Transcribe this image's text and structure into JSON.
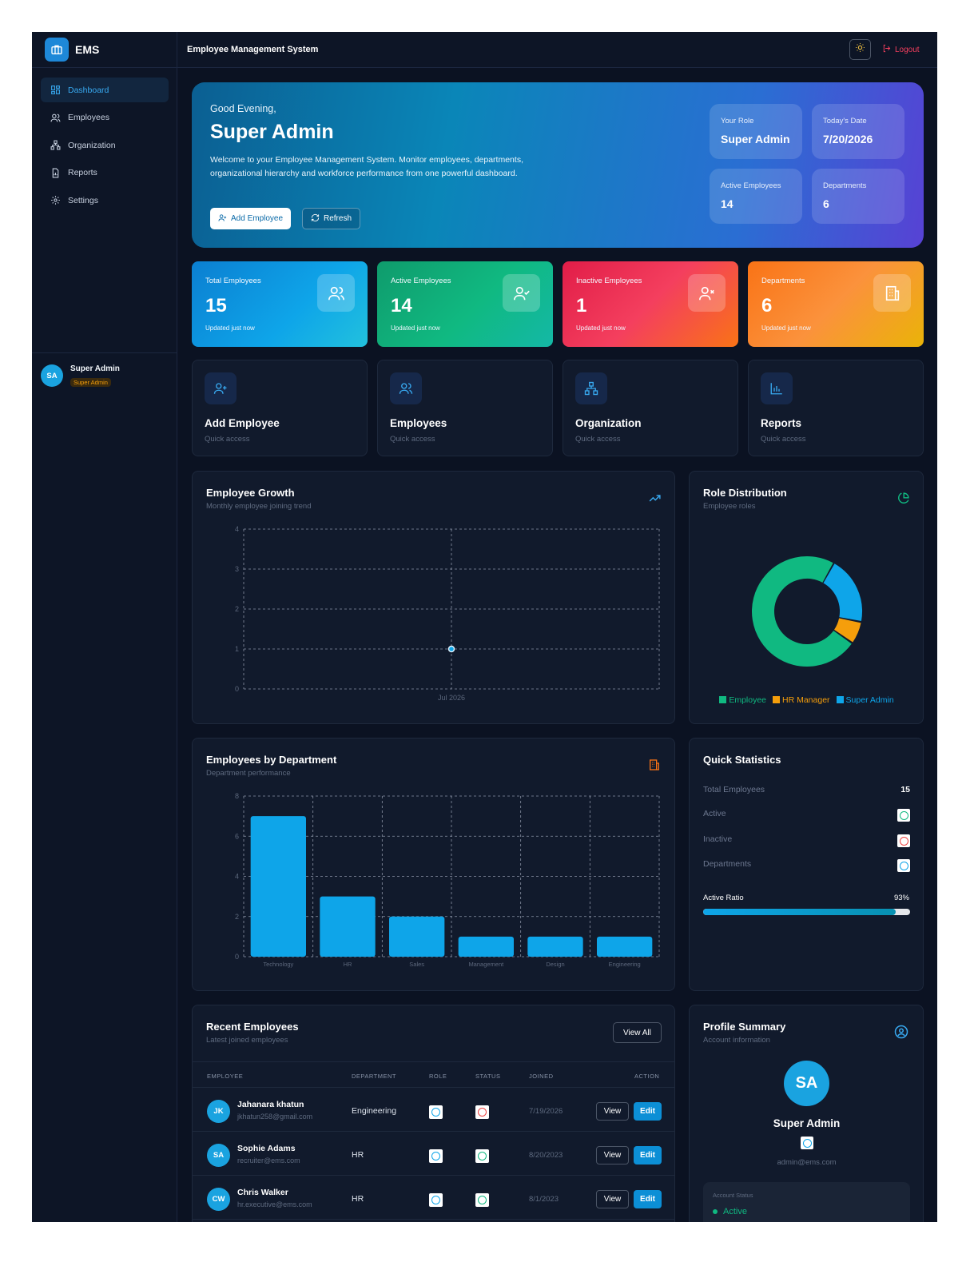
{
  "brand": {
    "name": "EMS",
    "icon": "briefcase-icon"
  },
  "sidebar": {
    "items": [
      {
        "label": "Dashboard",
        "icon": "dashboard-icon",
        "active": true
      },
      {
        "label": "Employees",
        "icon": "users-icon"
      },
      {
        "label": "Organization",
        "icon": "org-chart-icon"
      },
      {
        "label": "Reports",
        "icon": "file-chart-icon"
      },
      {
        "label": "Settings",
        "icon": "gear-icon"
      }
    ],
    "user": {
      "initials": "SA",
      "name": "Super Admin",
      "role": "Super Admin"
    }
  },
  "header": {
    "title": "Employee Management System",
    "logout_label": "Logout",
    "theme_icon": "sun-icon"
  },
  "hero": {
    "greeting": "Good Evening,",
    "name": "Super Admin",
    "description": "Welcome to your Employee Management System. Monitor employees, departments, organizational hierarchy and workforce performance from one powerful dashboard.",
    "add_employee_label": "Add Employee",
    "refresh_label": "Refresh",
    "stats": [
      {
        "label": "Your Role",
        "value": "Super Admin"
      },
      {
        "label": "Today's Date",
        "value": "7/20/2026"
      },
      {
        "label": "Active Employees",
        "value": "14"
      },
      {
        "label": "Departments",
        "value": "6"
      }
    ]
  },
  "stat_cards": [
    {
      "label": "Total Employees",
      "value": "15",
      "sub": "Updated just now",
      "icon": "users-icon",
      "color": "#0ea5e9"
    },
    {
      "label": "Active Employees",
      "value": "14",
      "sub": "Updated just now",
      "icon": "user-check-icon",
      "color": "#10b981"
    },
    {
      "label": "Inactive Employees",
      "value": "1",
      "sub": "Updated just now",
      "icon": "user-x-icon",
      "color": "#f43f5e"
    },
    {
      "label": "Departments",
      "value": "6",
      "sub": "Updated just now",
      "icon": "building-icon",
      "color": "#f97316"
    }
  ],
  "quick_access": [
    {
      "title": "Add Employee",
      "sub": "Quick access",
      "icon": "user-plus-icon"
    },
    {
      "title": "Employees",
      "sub": "Quick access",
      "icon": "users-icon"
    },
    {
      "title": "Organization",
      "sub": "Quick access",
      "icon": "org-chart-icon"
    },
    {
      "title": "Reports",
      "sub": "Quick access",
      "icon": "bar-chart-icon"
    }
  ],
  "growth_panel": {
    "title": "Employee Growth",
    "subtitle": "Monthly employee joining trend",
    "icon": "trending-up-icon"
  },
  "roles_panel": {
    "title": "Role Distribution",
    "subtitle": "Employee roles",
    "icon": "pie-chart-icon"
  },
  "dept_panel": {
    "title": "Employees by Department",
    "subtitle": "Department performance",
    "icon": "building-icon"
  },
  "chart_data": [
    {
      "type": "line",
      "x": [
        "Jul 2026"
      ],
      "series": [
        {
          "values": [
            1
          ]
        }
      ],
      "ylim": [
        0,
        4
      ],
      "yticks": [
        0,
        1,
        2,
        3,
        4
      ],
      "grid": true
    },
    {
      "type": "pie",
      "donut": true,
      "categories": [
        "Employee",
        "HR Manager",
        "Super Admin"
      ],
      "values": [
        11,
        1,
        3
      ],
      "colors": [
        "#10b981",
        "#f59e0b",
        "#0ea5e9"
      ],
      "legend": "bottom"
    },
    {
      "type": "bar",
      "categories": [
        "Technology",
        "HR",
        "Sales",
        "Management",
        "Design",
        "Engineering"
      ],
      "values": [
        7,
        3,
        2,
        1,
        1,
        1
      ],
      "ylim": [
        0,
        8
      ],
      "yticks": [
        0,
        2,
        4,
        6,
        8
      ],
      "grid": true,
      "color": "#0ea5e9"
    }
  ],
  "quick_stats": {
    "title": "Quick Statistics",
    "total_label": "Total Employees",
    "total_value": "15",
    "active_label": "Active",
    "inactive_label": "Inactive",
    "departments_label": "Departments",
    "ratio_label": "Active Ratio",
    "ratio_value": "93%",
    "ratio_fraction": 0.93
  },
  "recent": {
    "title": "Recent Employees",
    "subtitle": "Latest joined employees",
    "view_all_label": "View All",
    "columns": [
      "EMPLOYEE",
      "DEPARTMENT",
      "ROLE",
      "STATUS",
      "JOINED",
      "ACTION"
    ],
    "view_label": "View",
    "edit_label": "Edit",
    "rows": [
      {
        "initials": "JK",
        "name": "Jahanara khatun",
        "email": "jkhatun258@gmail.com",
        "department": "Engineering",
        "status_color": "#ef4444",
        "joined": "7/19/2026"
      },
      {
        "initials": "SA",
        "name": "Sophie Adams",
        "email": "recruiter@ems.com",
        "department": "HR",
        "status_color": "#10b981",
        "joined": "8/20/2023"
      },
      {
        "initials": "CW",
        "name": "Chris Walker",
        "email": "hr.executive@ems.com",
        "department": "HR",
        "status_color": "#10b981",
        "joined": "8/1/2023"
      }
    ]
  },
  "profile": {
    "title": "Profile Summary",
    "subtitle": "Account information",
    "icon": "user-circle-icon",
    "initials": "SA",
    "name": "Super Admin",
    "email": "admin@ems.com",
    "status_label": "Account Status",
    "status_value": "Active"
  }
}
